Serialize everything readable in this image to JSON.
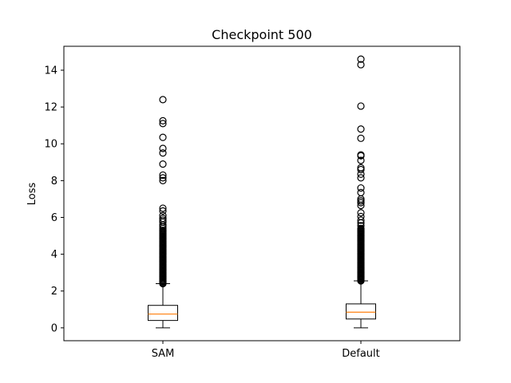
{
  "chart_data": {
    "type": "box",
    "title": "Checkpoint 500",
    "xlabel": "",
    "ylabel": "Loss",
    "ylim": [
      -0.7,
      15.3
    ],
    "yticks": [
      0,
      2,
      4,
      6,
      8,
      10,
      12,
      14
    ],
    "ytick_labels": [
      "0",
      "2",
      "4",
      "6",
      "8",
      "10",
      "12",
      "14"
    ],
    "grid": false,
    "categories": [
      "SAM",
      "Default"
    ],
    "colors": {
      "box": "#000000",
      "median": "#ff7f0e",
      "flier": "#000000"
    },
    "boxes": [
      {
        "category": "SAM",
        "whisker_low": 0.0,
        "q1": 0.4,
        "median": 0.75,
        "q3": 1.22,
        "whisker_high": 2.4,
        "outliers_dense_range": [
          2.4,
          5.3
        ],
        "outliers": [
          12.4,
          11.25,
          11.1,
          10.35,
          9.75,
          9.5,
          8.9,
          8.3,
          8.15,
          8.0,
          6.5,
          6.35,
          6.1,
          5.95,
          5.85,
          5.75,
          5.6,
          5.5,
          5.4
        ]
      },
      {
        "category": "Default",
        "whisker_low": 0.0,
        "q1": 0.48,
        "median": 0.85,
        "q3": 1.3,
        "whisker_high": 2.55,
        "outliers_dense_range": [
          2.55,
          5.4
        ],
        "outliers": [
          14.6,
          14.3,
          12.05,
          10.8,
          10.3,
          9.4,
          9.35,
          9.1,
          8.7,
          8.6,
          8.35,
          8.15,
          7.6,
          7.35,
          7.0,
          6.9,
          6.8,
          6.65,
          6.25,
          6.05,
          5.85,
          5.7,
          5.55
        ]
      }
    ]
  }
}
